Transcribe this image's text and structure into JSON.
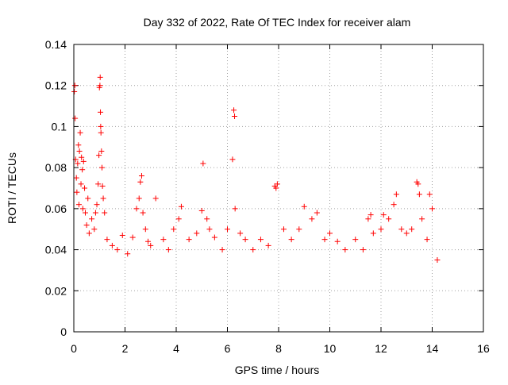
{
  "chart_data": {
    "type": "scatter",
    "title": "Day 332 of 2022, Rate Of TEC Index for receiver alam",
    "xlabel": "GPS time / hours",
    "ylabel": "ROTI / TECUs",
    "xlim": [
      0,
      16
    ],
    "ylim": [
      0,
      0.14
    ],
    "xticks": [
      "0",
      "2",
      "4",
      "6",
      "8",
      "10",
      "12",
      "14",
      "16"
    ],
    "yticks": [
      "0",
      "0.02",
      "0.04",
      "0.06",
      "0.08",
      "0.1",
      "0.12",
      "0.14"
    ],
    "grid": true,
    "marker": "plus",
    "color": "#ff0000",
    "series": [
      {
        "points": [
          [
            0.02,
            0.117
          ],
          [
            0.04,
            0.12
          ],
          [
            0.05,
            0.104
          ],
          [
            0.07,
            0.084
          ],
          [
            0.1,
            0.075
          ],
          [
            0.12,
            0.068
          ],
          [
            0.15,
            0.082
          ],
          [
            0.18,
            0.091
          ],
          [
            0.2,
            0.062
          ],
          [
            0.22,
            0.088
          ],
          [
            0.25,
            0.097
          ],
          [
            0.28,
            0.072
          ],
          [
            0.3,
            0.085
          ],
          [
            0.33,
            0.079
          ],
          [
            0.35,
            0.06
          ],
          [
            0.38,
            0.083
          ],
          [
            0.42,
            0.07
          ],
          [
            0.45,
            0.058
          ],
          [
            0.5,
            0.052
          ],
          [
            0.55,
            0.065
          ],
          [
            0.6,
            0.048
          ],
          [
            0.7,
            0.055
          ],
          [
            0.8,
            0.05
          ],
          [
            0.85,
            0.058
          ],
          [
            0.9,
            0.062
          ],
          [
            0.95,
            0.072
          ],
          [
            0.98,
            0.086
          ],
          [
            1.0,
            0.119
          ],
          [
            1.02,
            0.12
          ],
          [
            1.03,
            0.124
          ],
          [
            1.04,
            0.107
          ],
          [
            1.05,
            0.1
          ],
          [
            1.06,
            0.097
          ],
          [
            1.08,
            0.088
          ],
          [
            1.1,
            0.08
          ],
          [
            1.12,
            0.071
          ],
          [
            1.15,
            0.065
          ],
          [
            1.2,
            0.058
          ],
          [
            1.3,
            0.045
          ],
          [
            1.5,
            0.042
          ],
          [
            1.7,
            0.04
          ],
          [
            1.9,
            0.047
          ],
          [
            2.1,
            0.038
          ],
          [
            2.3,
            0.046
          ],
          [
            2.45,
            0.06
          ],
          [
            2.55,
            0.065
          ],
          [
            2.6,
            0.073
          ],
          [
            2.65,
            0.076
          ],
          [
            2.7,
            0.058
          ],
          [
            2.8,
            0.05
          ],
          [
            2.9,
            0.044
          ],
          [
            3.0,
            0.042
          ],
          [
            3.2,
            0.065
          ],
          [
            3.5,
            0.045
          ],
          [
            3.7,
            0.04
          ],
          [
            3.9,
            0.05
          ],
          [
            4.1,
            0.055
          ],
          [
            4.2,
            0.061
          ],
          [
            4.5,
            0.045
          ],
          [
            4.8,
            0.048
          ],
          [
            5.0,
            0.059
          ],
          [
            5.05,
            0.082
          ],
          [
            5.2,
            0.055
          ],
          [
            5.3,
            0.05
          ],
          [
            5.5,
            0.046
          ],
          [
            5.8,
            0.04
          ],
          [
            6.0,
            0.05
          ],
          [
            6.2,
            0.084
          ],
          [
            6.25,
            0.108
          ],
          [
            6.28,
            0.105
          ],
          [
            6.3,
            0.06
          ],
          [
            6.5,
            0.048
          ],
          [
            6.7,
            0.045
          ],
          [
            7.0,
            0.04
          ],
          [
            7.3,
            0.045
          ],
          [
            7.6,
            0.042
          ],
          [
            7.85,
            0.071
          ],
          [
            7.9,
            0.07
          ],
          [
            7.95,
            0.072
          ],
          [
            8.2,
            0.05
          ],
          [
            8.5,
            0.045
          ],
          [
            8.8,
            0.05
          ],
          [
            9.0,
            0.061
          ],
          [
            9.3,
            0.055
          ],
          [
            9.5,
            0.058
          ],
          [
            9.8,
            0.045
          ],
          [
            10.0,
            0.048
          ],
          [
            10.3,
            0.044
          ],
          [
            10.6,
            0.04
          ],
          [
            11.0,
            0.045
          ],
          [
            11.3,
            0.04
          ],
          [
            11.5,
            0.055
          ],
          [
            11.6,
            0.057
          ],
          [
            11.7,
            0.048
          ],
          [
            12.0,
            0.05
          ],
          [
            12.1,
            0.057
          ],
          [
            12.3,
            0.055
          ],
          [
            12.5,
            0.062
          ],
          [
            12.6,
            0.067
          ],
          [
            12.8,
            0.05
          ],
          [
            13.0,
            0.048
          ],
          [
            13.2,
            0.05
          ],
          [
            13.4,
            0.073
          ],
          [
            13.45,
            0.072
          ],
          [
            13.5,
            0.067
          ],
          [
            13.6,
            0.055
          ],
          [
            13.8,
            0.045
          ],
          [
            13.9,
            0.067
          ],
          [
            14.0,
            0.06
          ],
          [
            14.2,
            0.035
          ]
        ]
      }
    ]
  }
}
